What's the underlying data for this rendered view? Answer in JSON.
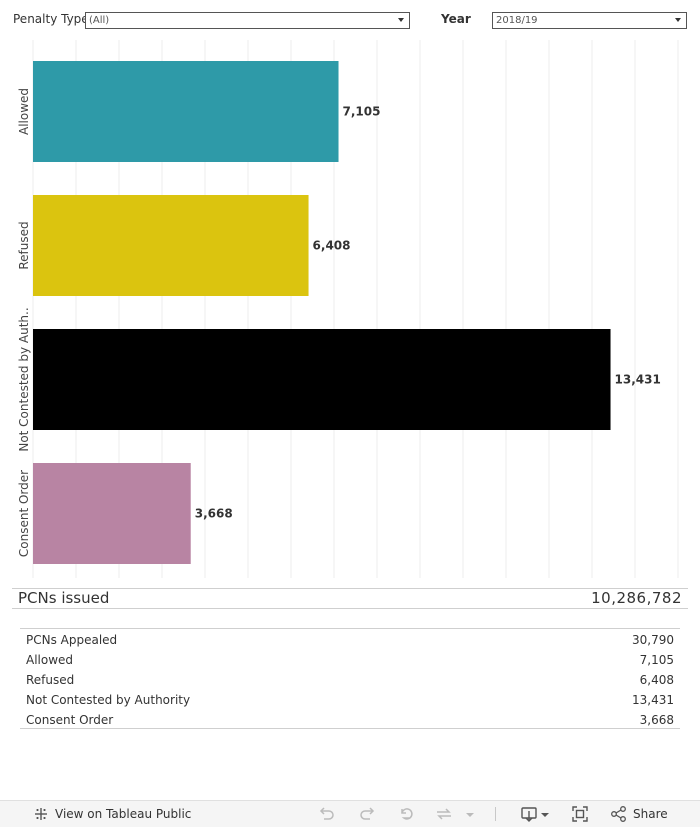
{
  "filters": {
    "penalty_type_label": "Penalty Type",
    "penalty_type_value": "(All)",
    "year_label": "Year",
    "year_value": "2018/19"
  },
  "chart_data": {
    "type": "bar",
    "orientation": "horizontal",
    "categories": [
      "Allowed",
      "Refused",
      "Not Contested by Auth..",
      "Consent Order"
    ],
    "values": [
      7105,
      6408,
      13431,
      3668
    ],
    "value_labels": [
      "7,105",
      "6,408",
      "13,431",
      "3,668"
    ],
    "colors": [
      "#2e9aa8",
      "#dbc40f",
      "#000000",
      "#b884a3"
    ],
    "xlim": [
      0,
      15000
    ],
    "grid": "vertical",
    "title": "",
    "xlabel": "",
    "ylabel": ""
  },
  "issued": {
    "label": "PCNs issued",
    "value": "10,286,782"
  },
  "summary": [
    {
      "label": "PCNs Appealed",
      "value": "30,790"
    },
    {
      "label": "Allowed",
      "value": "7,105"
    },
    {
      "label": "Refused",
      "value": "6,408"
    },
    {
      "label": "Not Contested by Authority",
      "value": "13,431"
    },
    {
      "label": "Consent Order",
      "value": "3,668"
    }
  ],
  "toolbar": {
    "view_label": "View on Tableau Public",
    "share_label": "Share",
    "icons": [
      "tableau-logo-icon",
      "undo-icon",
      "redo-icon",
      "revert-icon",
      "refresh-icon",
      "dropdown-icon",
      "download-icon",
      "fullscreen-icon",
      "share-icon"
    ]
  }
}
